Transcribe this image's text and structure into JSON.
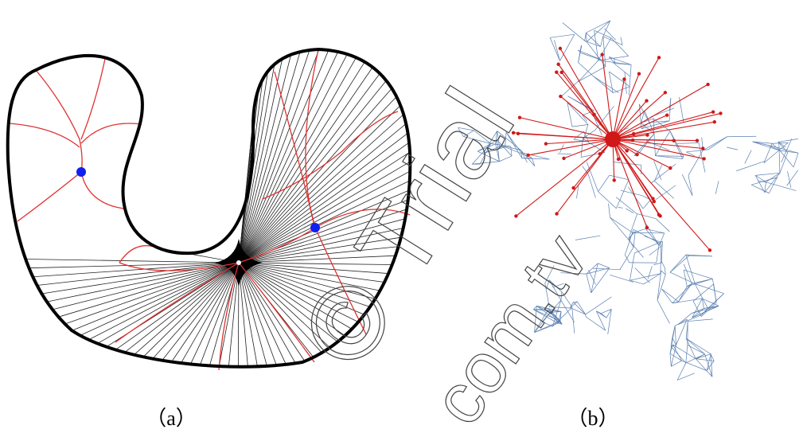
{
  "figure": {
    "panels": [
      {
        "label": "（a）"
      },
      {
        "label": "（b）"
      }
    ]
  },
  "watermark": {
    "text": "© Trial",
    "site": "com.tv"
  }
}
